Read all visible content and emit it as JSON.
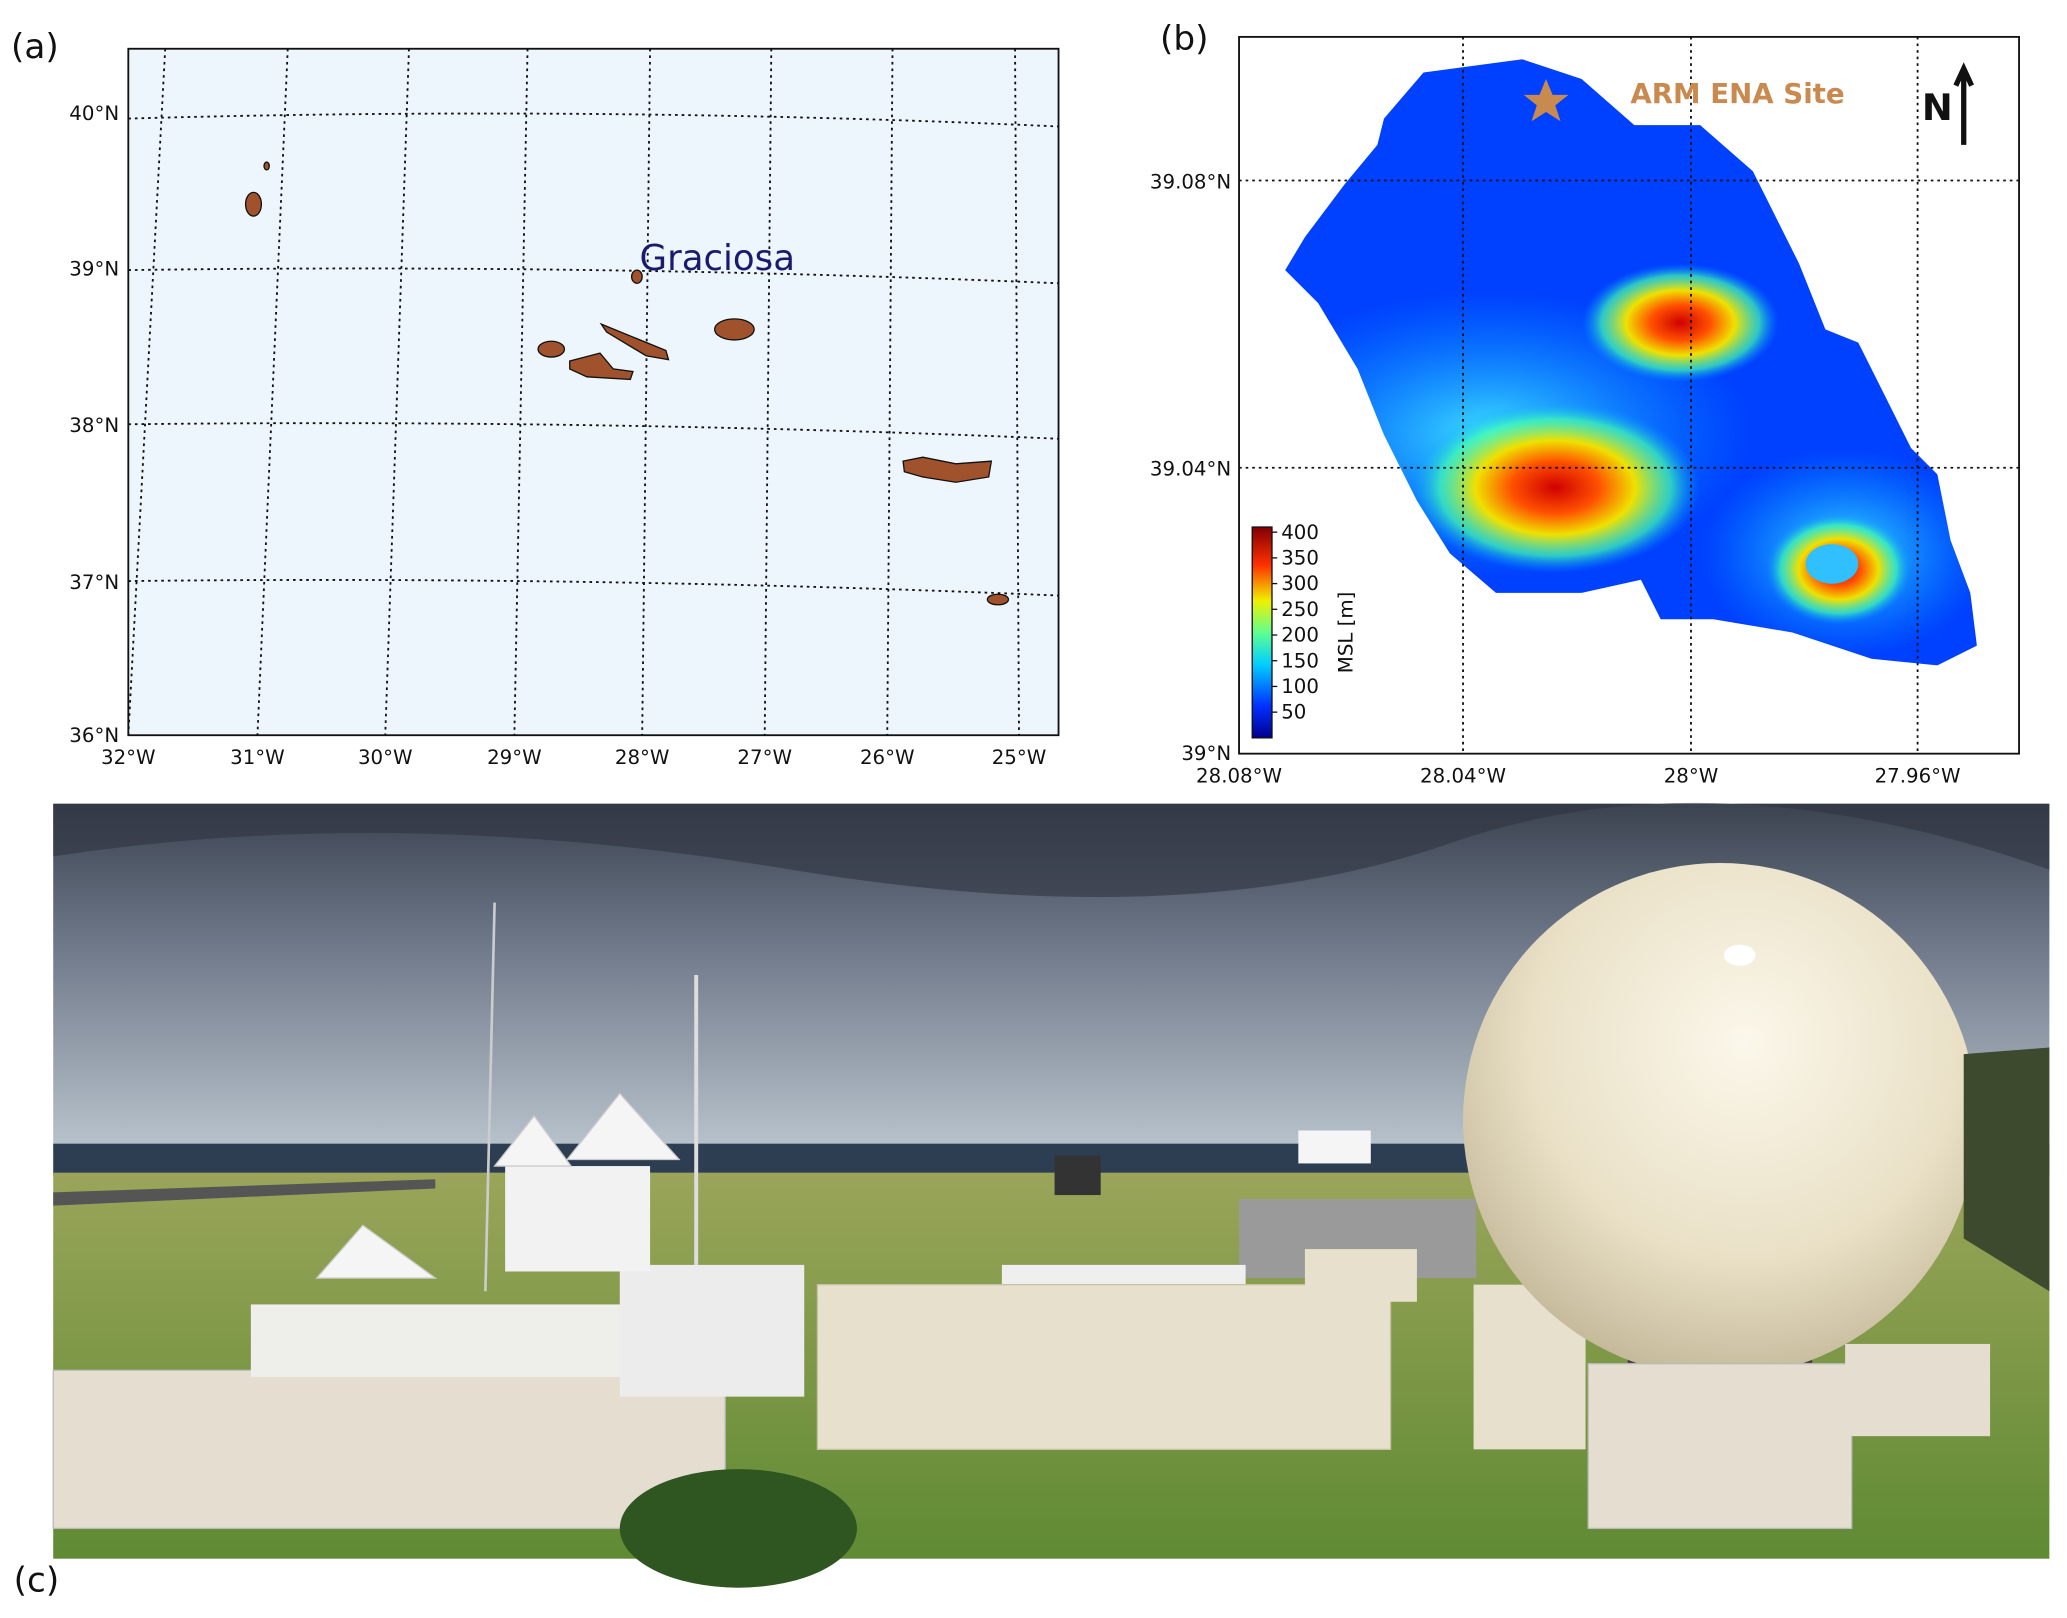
{
  "panels": [
    {
      "label": "(a)",
      "place": "Graciosa",
      "lat_ticks": [
        "40°N",
        "39°N",
        "38°N",
        "37°N",
        "36°N"
      ],
      "lon_ticks": [
        "32°W",
        "31°W",
        "30°W",
        "29°W",
        "28°W",
        "27°W",
        "26°W",
        "25°W"
      ]
    },
    {
      "label": "(b)",
      "site": "ARM ENA Site",
      "north": "N",
      "lat_ticks": [
        "39.08°N",
        "39.04°N",
        "39°N"
      ],
      "lon_ticks": [
        "28.08°W",
        "28.04°W",
        "28°W",
        "27.96°W"
      ],
      "colorbar": {
        "label": "MSL [m]",
        "lim": [
          0,
          410
        ],
        "ticks": [
          50,
          100,
          150,
          200,
          250,
          300,
          350,
          400
        ]
      }
    },
    {
      "label": "(c)"
    }
  ]
}
